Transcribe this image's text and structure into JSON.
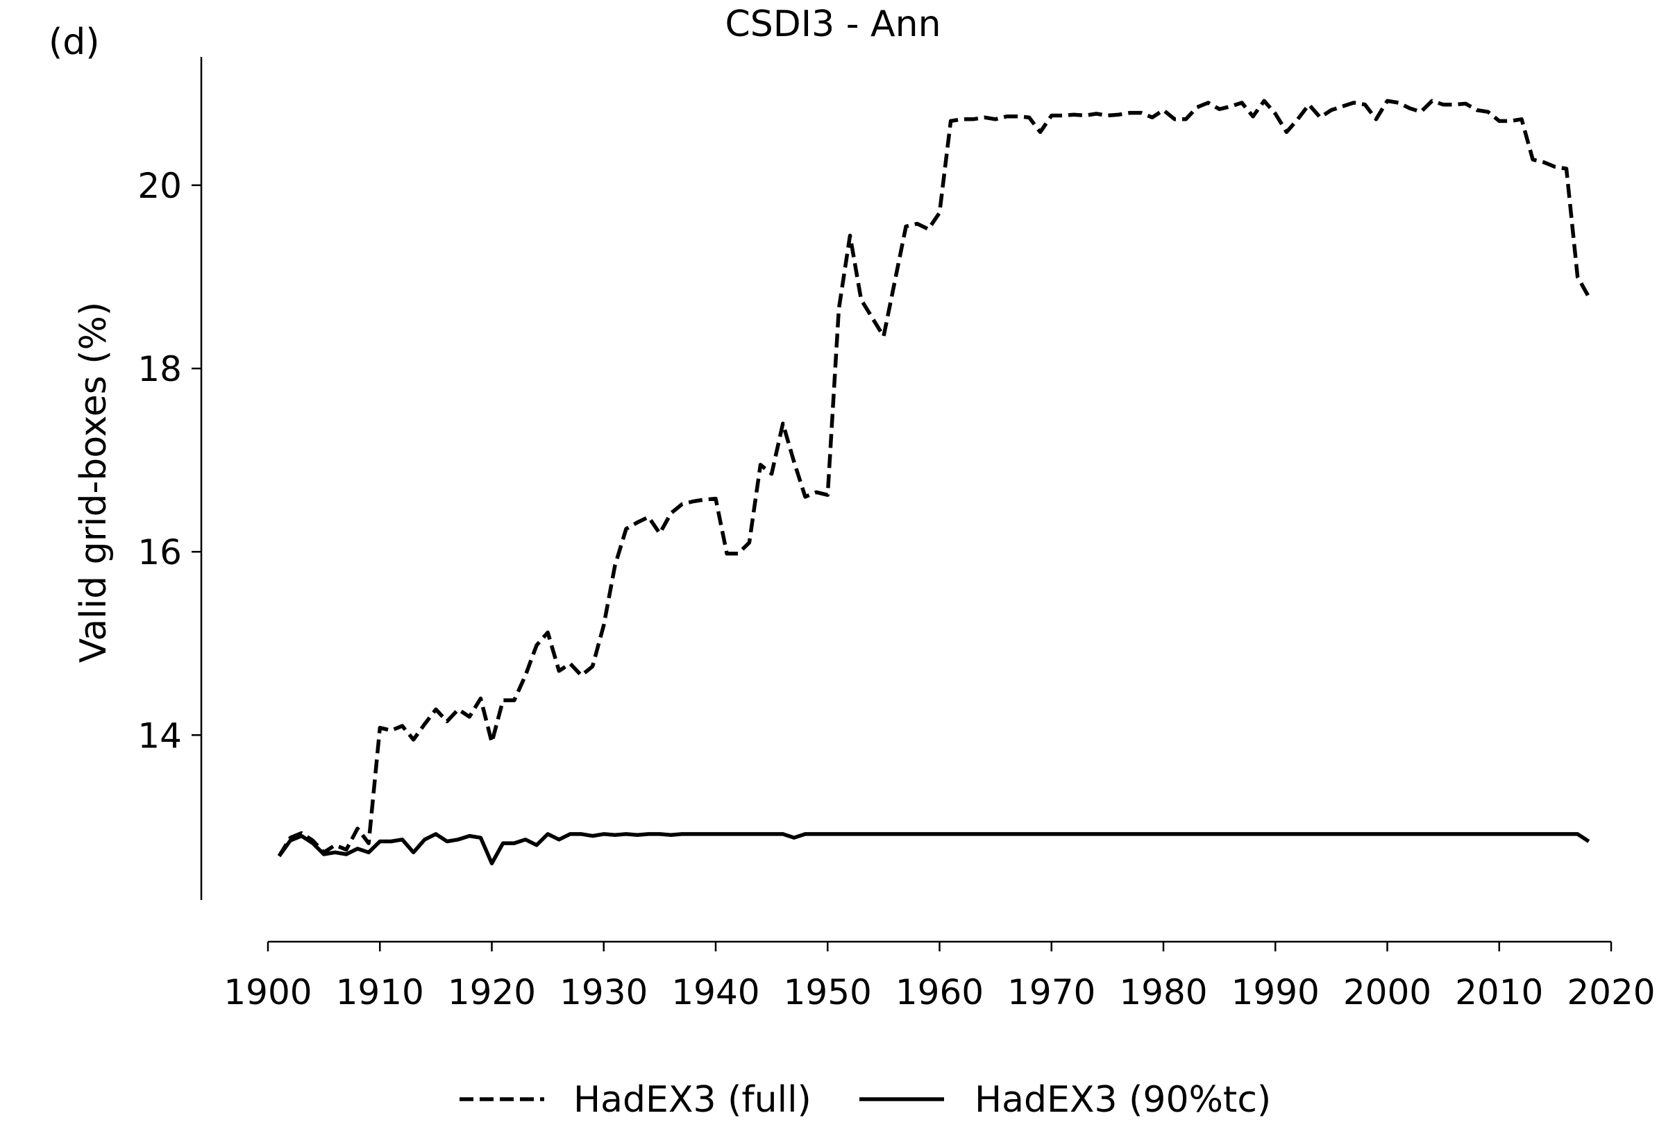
{
  "panel_label": "(d)",
  "chart_data": {
    "type": "line",
    "title": "CSDI3 - Ann",
    "xlabel": "",
    "ylabel": "Valid grid-boxes (%)",
    "xlim": [
      1900,
      2020
    ],
    "ylim": [
      12.2,
      21.4
    ],
    "xticks": [
      "1900",
      "1910",
      "1920",
      "1930",
      "1940",
      "1950",
      "1960",
      "1970",
      "1980",
      "1990",
      "2000",
      "2010",
      "2020"
    ],
    "yticks": [
      "14",
      "16",
      "18",
      "20"
    ],
    "legend_position": "bottom",
    "grid": false,
    "x": [
      1901,
      1902,
      1903,
      1904,
      1905,
      1906,
      1907,
      1908,
      1909,
      1910,
      1911,
      1912,
      1913,
      1914,
      1915,
      1916,
      1917,
      1918,
      1919,
      1920,
      1921,
      1922,
      1923,
      1924,
      1925,
      1926,
      1927,
      1928,
      1929,
      1930,
      1931,
      1932,
      1933,
      1934,
      1935,
      1936,
      1937,
      1938,
      1939,
      1940,
      1941,
      1942,
      1943,
      1944,
      1945,
      1946,
      1947,
      1948,
      1949,
      1950,
      1951,
      1952,
      1953,
      1954,
      1955,
      1956,
      1957,
      1958,
      1959,
      1960,
      1961,
      1962,
      1963,
      1964,
      1965,
      1966,
      1967,
      1968,
      1969,
      1970,
      1971,
      1972,
      1973,
      1974,
      1975,
      1976,
      1977,
      1978,
      1979,
      1980,
      1981,
      1982,
      1983,
      1984,
      1985,
      1986,
      1987,
      1988,
      1989,
      1990,
      1991,
      1992,
      1993,
      1994,
      1995,
      1996,
      1997,
      1998,
      1999,
      2000,
      2001,
      2002,
      2003,
      2004,
      2005,
      2006,
      2007,
      2008,
      2009,
      2010,
      2011,
      2012,
      2013,
      2014,
      2015,
      2016,
      2017,
      2018
    ],
    "series": [
      {
        "name": "HadEX3 (full)",
        "style": "dashed",
        "color": "#000000",
        "values": [
          12.68,
          12.88,
          12.93,
          12.85,
          12.72,
          12.8,
          12.75,
          12.98,
          12.82,
          14.08,
          14.05,
          14.1,
          13.95,
          14.12,
          14.28,
          14.15,
          14.28,
          14.2,
          14.4,
          13.92,
          14.38,
          14.38,
          14.65,
          14.98,
          15.12,
          14.7,
          14.78,
          14.65,
          14.75,
          15.2,
          15.85,
          16.25,
          16.32,
          16.38,
          16.2,
          16.42,
          16.52,
          16.55,
          16.57,
          16.58,
          15.98,
          15.98,
          16.1,
          16.95,
          16.85,
          17.4,
          16.98,
          16.6,
          16.65,
          16.62,
          18.65,
          19.45,
          18.75,
          18.55,
          18.35,
          18.95,
          19.55,
          19.58,
          19.52,
          19.7,
          20.7,
          20.72,
          20.72,
          20.74,
          20.72,
          20.75,
          20.75,
          20.74,
          20.58,
          20.76,
          20.76,
          20.77,
          20.76,
          20.78,
          20.76,
          20.77,
          20.79,
          20.79,
          20.74,
          20.82,
          20.72,
          20.72,
          20.85,
          20.9,
          20.83,
          20.86,
          20.9,
          20.75,
          20.92,
          20.78,
          20.58,
          20.72,
          20.88,
          20.74,
          20.82,
          20.86,
          20.9,
          20.88,
          20.72,
          20.92,
          20.9,
          20.84,
          20.8,
          20.92,
          20.88,
          20.88,
          20.89,
          20.82,
          20.8,
          20.7,
          20.7,
          20.72,
          20.28,
          20.25,
          20.2,
          20.18,
          19.0,
          18.78
        ]
      },
      {
        "name": "HadEX3 (90%tc)",
        "style": "solid",
        "color": "#000000",
        "values": [
          12.68,
          12.85,
          12.9,
          12.82,
          12.7,
          12.72,
          12.7,
          12.76,
          12.72,
          12.84,
          12.84,
          12.86,
          12.72,
          12.86,
          12.92,
          12.84,
          12.86,
          12.9,
          12.88,
          12.6,
          12.82,
          12.82,
          12.86,
          12.8,
          12.92,
          12.86,
          12.92,
          12.92,
          12.9,
          12.92,
          12.91,
          12.92,
          12.91,
          12.92,
          12.92,
          12.91,
          12.92,
          12.92,
          12.92,
          12.92,
          12.92,
          12.92,
          12.92,
          12.92,
          12.92,
          12.92,
          12.88,
          12.92,
          12.92,
          12.92,
          12.92,
          12.92,
          12.92,
          12.92,
          12.92,
          12.92,
          12.92,
          12.92,
          12.92,
          12.92,
          12.92,
          12.92,
          12.92,
          12.92,
          12.92,
          12.92,
          12.92,
          12.92,
          12.92,
          12.92,
          12.92,
          12.92,
          12.92,
          12.92,
          12.92,
          12.92,
          12.92,
          12.92,
          12.92,
          12.92,
          12.92,
          12.92,
          12.92,
          12.92,
          12.92,
          12.92,
          12.92,
          12.92,
          12.92,
          12.92,
          12.92,
          12.92,
          12.92,
          12.92,
          12.92,
          12.92,
          12.92,
          12.92,
          12.92,
          12.92,
          12.92,
          12.92,
          12.92,
          12.92,
          12.92,
          12.92,
          12.92,
          12.92,
          12.92,
          12.92,
          12.92,
          12.92,
          12.92,
          12.92,
          12.92,
          12.92,
          12.92,
          12.84
        ]
      }
    ]
  }
}
